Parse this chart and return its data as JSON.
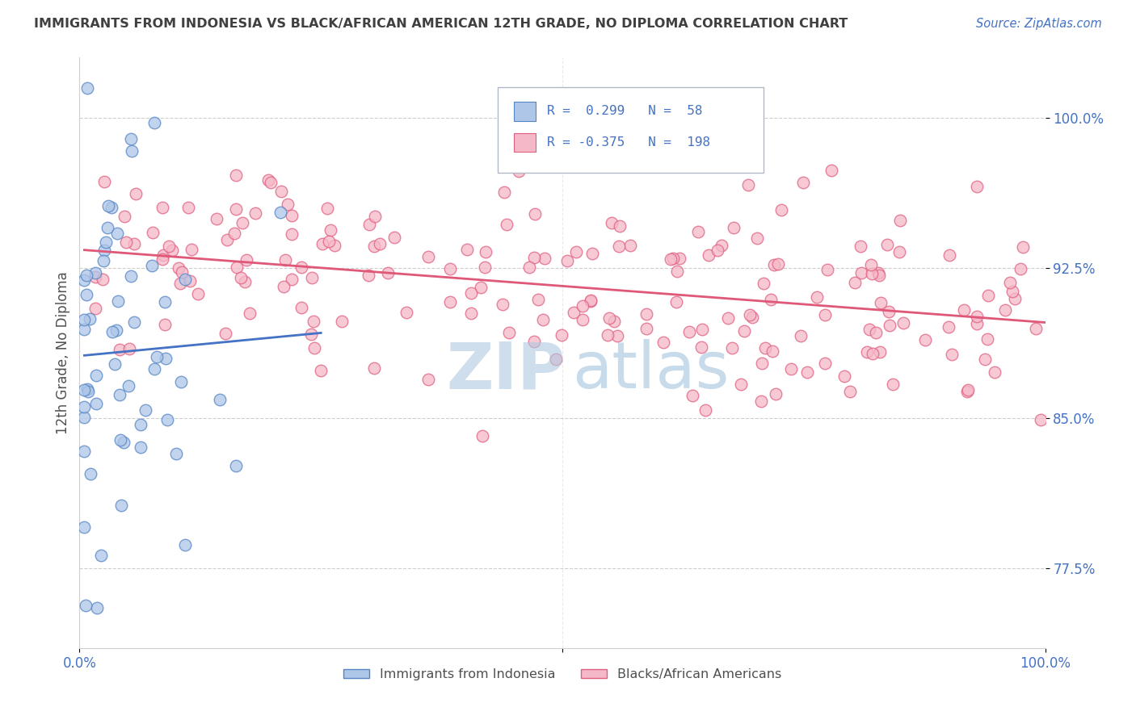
{
  "title": "IMMIGRANTS FROM INDONESIA VS BLACK/AFRICAN AMERICAN 12TH GRADE, NO DIPLOMA CORRELATION CHART",
  "source": "Source: ZipAtlas.com",
  "ylabel": "12th Grade, No Diploma",
  "xmin": 0.0,
  "xmax": 1.0,
  "ymin": 0.735,
  "ymax": 1.03,
  "yticks": [
    0.775,
    0.85,
    0.925,
    1.0
  ],
  "yticklabels": [
    "77.5%",
    "85.0%",
    "92.5%",
    "100.0%"
  ],
  "blue_color": "#aec6e8",
  "pink_color": "#f5b8c8",
  "blue_edge_color": "#5585c5",
  "pink_edge_color": "#e06080",
  "blue_line_color": "#4472c4",
  "pink_line_color": "#e05878",
  "title_color": "#404040",
  "axis_label_color": "#505050",
  "source_color": "#4472c4",
  "tick_color": "#4472c4",
  "grid_color": "#c8c8c8",
  "watermark_zip_color": "#b0c8e0",
  "watermark_atlas_color": "#90b8d8"
}
